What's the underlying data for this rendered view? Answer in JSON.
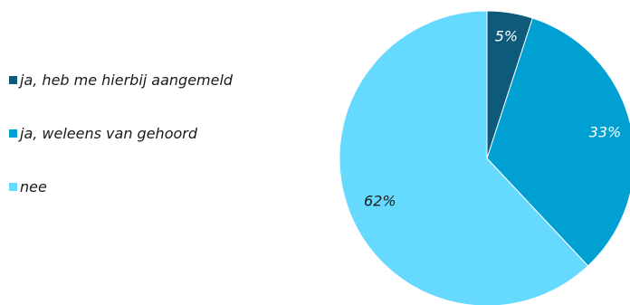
{
  "chart_data": {
    "type": "pie",
    "title": "",
    "categories": [
      "ja, heb me hierbij aangemeld",
      "ja, weleens van gehoord",
      "nee"
    ],
    "values": [
      5,
      33,
      62
    ],
    "value_labels": [
      "5%",
      "33%",
      "62%"
    ],
    "colors": [
      "#0d5a7a",
      "#00a0d2",
      "#66d9ff"
    ],
    "label_colors": [
      "#ffffff",
      "#ffffff",
      "#1a1a1a"
    ],
    "legend": {
      "position": "left",
      "items": [
        {
          "label": "ja, heb me hierbij aangemeld",
          "color": "#0d5a7a"
        },
        {
          "label": "ja, weleens van gehoord",
          "color": "#00a0d2"
        },
        {
          "label": "nee",
          "color": "#66d9ff"
        }
      ]
    }
  }
}
